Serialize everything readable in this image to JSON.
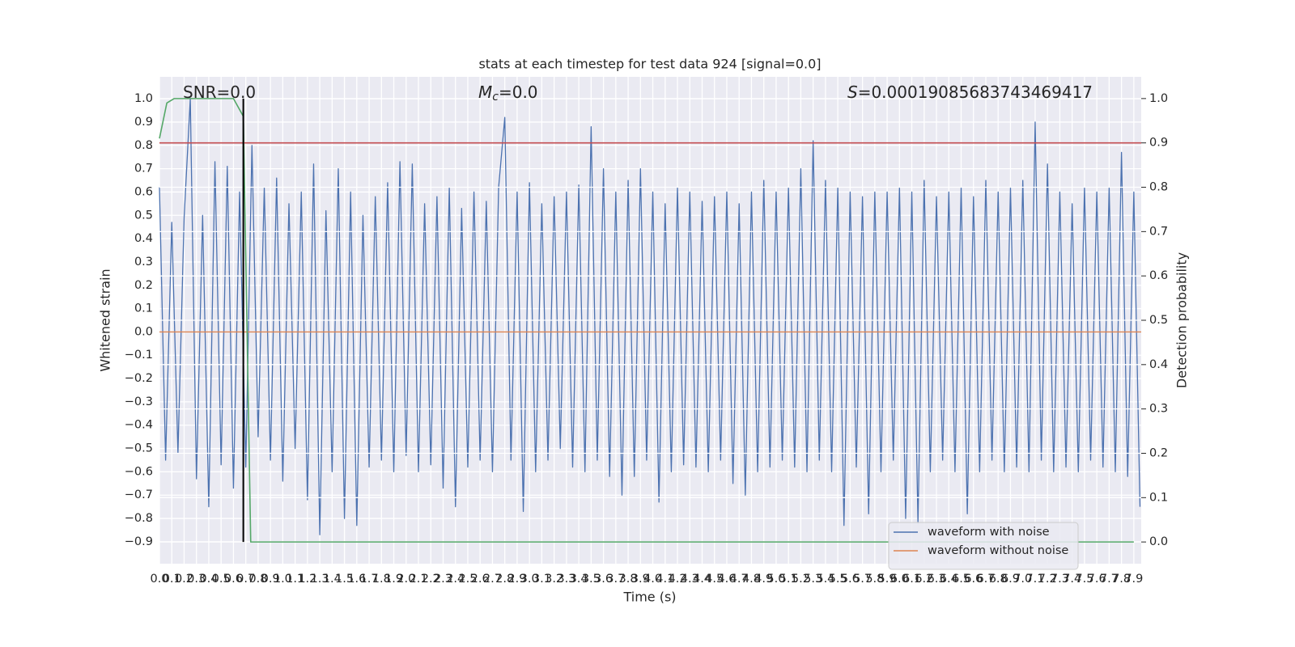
{
  "chart_data": {
    "type": "line",
    "title": "stats at each timestep for test data 924 [signal=0.0]",
    "xlabel": "Time (s)",
    "ylabel": "Whitened strain",
    "y2label": "Detection probability",
    "annotations": [
      {
        "text": "SNR=0.0"
      },
      {
        "symbol": "M",
        "subscript": "c",
        "text": "=0.0"
      },
      {
        "symbol": "S",
        "text": "=0.00019085683743469417"
      }
    ],
    "xlim": [
      0,
      7.96
    ],
    "ylim": [
      -0.994,
      1.094
    ],
    "y2lim": [
      -0.049,
      1.049
    ],
    "grid": true,
    "background": "#eaeaf2",
    "legend": "lower right",
    "xticks": [
      {
        "value": 0,
        "label": "0.0"
      },
      0.1,
      0.2,
      0.3,
      0.4,
      0.5,
      0.6,
      0.7,
      0.8,
      0.9,
      {
        "value": 1,
        "label": "1.0"
      },
      1.1,
      1.2,
      1.3,
      1.4,
      1.5,
      1.6,
      1.7,
      1.8,
      1.9,
      {
        "value": 2,
        "label": "2.0"
      },
      2.1,
      2.2,
      2.3,
      2.4,
      2.5,
      2.6,
      2.7,
      2.8,
      2.9,
      {
        "value": 3,
        "label": "3.0"
      },
      3.1,
      3.2,
      3.3,
      3.4,
      3.5,
      3.6,
      3.7,
      3.8,
      3.9,
      {
        "value": 4,
        "label": "4.0"
      },
      4.1,
      4.2,
      4.3,
      4.4,
      4.5,
      4.6,
      4.7,
      4.8,
      4.9,
      {
        "value": 5,
        "label": "5.0"
      },
      5.1,
      5.2,
      5.3,
      5.4,
      5.5,
      5.6,
      5.7,
      5.8,
      5.9,
      {
        "value": 6,
        "label": "6.0"
      },
      6.1,
      6.2,
      6.3,
      6.4,
      6.5,
      6.6,
      6.7,
      6.8,
      6.9,
      {
        "value": 7,
        "label": "7.0"
      },
      7.1,
      7.2,
      7.3,
      7.4,
      7.5,
      7.6,
      7.7,
      7.8,
      7.9
    ],
    "yticks": [
      {
        "value": 1,
        "label": "1.0"
      },
      0.9,
      0.8,
      0.7,
      0.6,
      0.5,
      0.4,
      0.3,
      0.2,
      0.1,
      {
        "value": 0,
        "label": "0.0"
      },
      {
        "value": -0.1,
        "label": "−0.1"
      },
      {
        "value": -0.2,
        "label": "−0.2"
      },
      {
        "value": -0.3,
        "label": "−0.3"
      },
      {
        "value": -0.4,
        "label": "−0.4"
      },
      {
        "value": -0.5,
        "label": "−0.5"
      },
      {
        "value": -0.6,
        "label": "−0.6"
      },
      {
        "value": -0.7,
        "label": "−0.7"
      },
      {
        "value": -0.8,
        "label": "−0.8"
      },
      {
        "value": -0.9,
        "label": "−0.9"
      }
    ],
    "y2ticks": [
      {
        "value": 0,
        "label": "0.0"
      },
      0.1,
      0.2,
      0.3,
      0.4,
      0.5,
      0.6,
      0.7,
      0.8,
      0.9,
      {
        "value": 1,
        "label": "1.0"
      }
    ],
    "series": [
      {
        "name": "waveform with noise",
        "color": "#4c72b0",
        "x": [
          0,
          0.05,
          0.1,
          0.15,
          0.2,
          0.25,
          0.3,
          0.35,
          0.4,
          0.45,
          0.5,
          0.55,
          0.6,
          0.65,
          0.7,
          0.75,
          0.8,
          0.85,
          0.9,
          0.95,
          1,
          1.05,
          1.1,
          1.15,
          1.2,
          1.25,
          1.3,
          1.35,
          1.4,
          1.45,
          1.5,
          1.55,
          1.6,
          1.65,
          1.7,
          1.75,
          1.8,
          1.85,
          1.9,
          1.95,
          2,
          2.05,
          2.1,
          2.15,
          2.2,
          2.25,
          2.3,
          2.35,
          2.4,
          2.45,
          2.5,
          2.55,
          2.6,
          2.65,
          2.7,
          2.75,
          2.8,
          2.85,
          2.9,
          2.95,
          3,
          3.05,
          3.1,
          3.15,
          3.2,
          3.25,
          3.3,
          3.35,
          3.4,
          3.45,
          3.5,
          3.55,
          3.6,
          3.65,
          3.7,
          3.75,
          3.8,
          3.85,
          3.9,
          3.95,
          4,
          4.05,
          4.1,
          4.15,
          4.2,
          4.25,
          4.3,
          4.35,
          4.4,
          4.45,
          4.5,
          4.55,
          4.6,
          4.65,
          4.7,
          4.75,
          4.8,
          4.85,
          4.9,
          4.95,
          5,
          5.05,
          5.1,
          5.15,
          5.2,
          5.25,
          5.3,
          5.35,
          5.4,
          5.45,
          5.5,
          5.55,
          5.6,
          5.65,
          5.7,
          5.75,
          5.8,
          5.85,
          5.9,
          5.95,
          6,
          6.05,
          6.1,
          6.15,
          6.2,
          6.25,
          6.3,
          6.35,
          6.4,
          6.45,
          6.5,
          6.55,
          6.6,
          6.65,
          6.7,
          6.75,
          6.8,
          6.85,
          6.9,
          6.95,
          7,
          7.05,
          7.1,
          7.15,
          7.2,
          7.25,
          7.3,
          7.35,
          7.4,
          7.45,
          7.5,
          7.55,
          7.6,
          7.65,
          7.7,
          7.75,
          7.8,
          7.85,
          7.9,
          7.95
        ],
        "values": [
          0.62,
          -0.55,
          0.47,
          -0.52,
          0.49,
          1.0,
          -0.63,
          0.5,
          -0.75,
          0.73,
          -0.57,
          0.71,
          -0.67,
          0.6,
          -0.58,
          0.8,
          -0.45,
          0.62,
          -0.55,
          0.66,
          -0.64,
          0.55,
          -0.5,
          0.6,
          -0.72,
          0.72,
          -0.87,
          0.52,
          -0.6,
          0.7,
          -0.8,
          0.6,
          -0.83,
          0.5,
          -0.58,
          0.58,
          -0.55,
          0.64,
          -0.6,
          0.73,
          -0.53,
          0.72,
          -0.6,
          0.55,
          -0.57,
          0.58,
          -0.67,
          0.62,
          -0.75,
          0.53,
          -0.58,
          0.6,
          -0.55,
          0.56,
          -0.6,
          0.62,
          0.92,
          -0.55,
          0.6,
          -0.77,
          0.64,
          -0.6,
          0.55,
          -0.55,
          0.58,
          -0.5,
          0.6,
          -0.58,
          0.63,
          -0.6,
          0.88,
          -0.55,
          0.7,
          -0.62,
          0.6,
          -0.7,
          0.65,
          -0.62,
          0.7,
          -0.55,
          0.6,
          -0.73,
          0.55,
          -0.6,
          0.62,
          -0.57,
          0.6,
          -0.58,
          0.56,
          -0.6,
          0.58,
          -0.55,
          0.6,
          -0.65,
          0.55,
          -0.7,
          0.6,
          -0.6,
          0.65,
          -0.58,
          0.6,
          -0.55,
          0.62,
          -0.58,
          0.7,
          -0.6,
          0.82,
          -0.55,
          0.65,
          -0.6,
          0.62,
          -0.83,
          0.6,
          -0.58,
          0.58,
          -0.78,
          0.6,
          -0.6,
          0.6,
          -0.55,
          0.62,
          -0.8,
          0.6,
          -0.82,
          0.65,
          -0.6,
          0.58,
          -0.55,
          0.6,
          -0.6,
          0.62,
          -0.78,
          0.58,
          -0.6,
          0.65,
          -0.55,
          0.6,
          -0.6,
          0.62,
          -0.58,
          0.65,
          -0.6,
          0.9,
          -0.55,
          0.72,
          -0.6,
          0.6,
          -0.58,
          0.55,
          -0.6,
          0.62,
          -0.55,
          0.6,
          -0.58,
          0.62,
          -0.6,
          0.77,
          -0.62,
          0.6,
          -0.75
        ]
      },
      {
        "name": "waveform without noise",
        "color": "#dd8452",
        "x": [
          0,
          7.96
        ],
        "values": [
          0,
          0
        ]
      },
      {
        "color": "#55a868",
        "axis": "y2",
        "x": [
          0,
          0.06,
          0.12,
          0.6,
          0.68,
          0.74,
          7.9
        ],
        "values": [
          0.91,
          0.99,
          1.0,
          1.0,
          0.96,
          0,
          0
        ]
      }
    ],
    "hlines": [
      {
        "y": 0.9,
        "axis": "y2",
        "color": "#c44e52"
      }
    ],
    "vlines": [
      {
        "x": 0.68,
        "ymin": 0,
        "ymax": 1,
        "axis": "y2",
        "color": "#000000"
      }
    ]
  }
}
